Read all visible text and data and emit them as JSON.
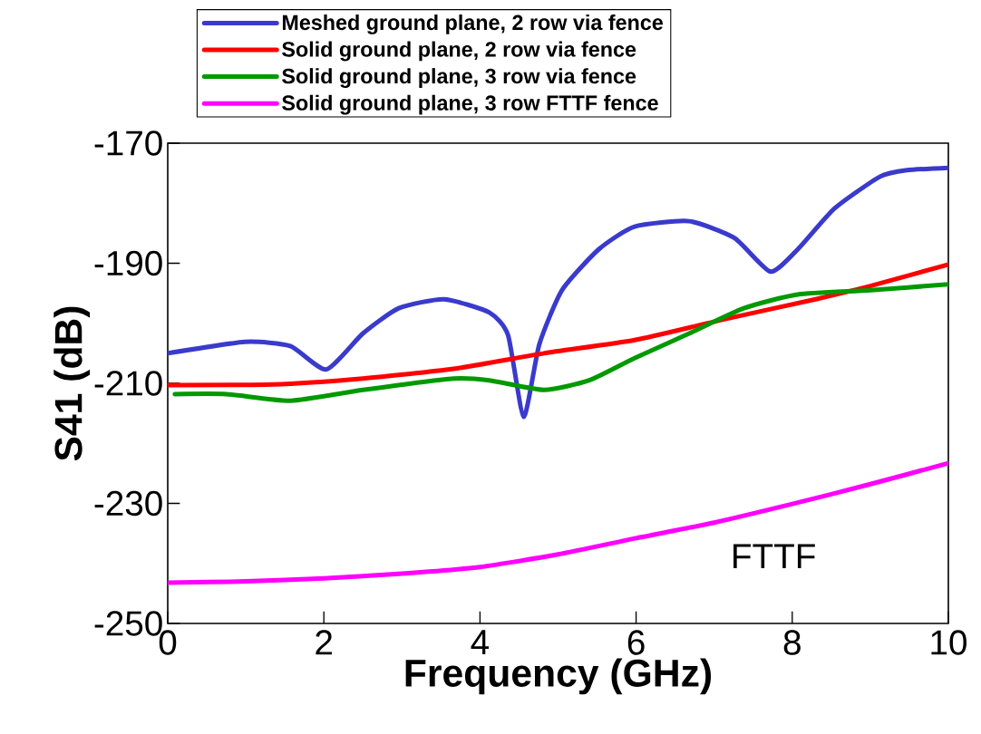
{
  "chart_data": {
    "type": "line",
    "xlabel": "Frequency (GHz)",
    "ylabel": "S41 (dB)",
    "xlim": [
      0,
      10
    ],
    "ylim": [
      -250,
      -170
    ],
    "xticks": [
      0,
      2,
      4,
      6,
      8,
      10
    ],
    "yticks": [
      -250,
      -230,
      -210,
      -190,
      -170
    ],
    "grid": false,
    "legend": "top",
    "marker": "none",
    "line_style": "solid",
    "annotations": [
      "FTTF"
    ],
    "series": [
      {
        "name": "Meshed ground plane, 2 row via fence",
        "color": "#3a3acc",
        "x": [
          0,
          0.99,
          1.57,
          2.03,
          2.5,
          2.96,
          3.54,
          4.12,
          4.36,
          4.56,
          4.76,
          5.05,
          5.52,
          5.98,
          6.68,
          7.26,
          7.72,
          8.07,
          8.54,
          9.12,
          9.47,
          10
        ],
        "values": [
          -205.0,
          -203.1,
          -203.8,
          -207.7,
          -201.7,
          -197.5,
          -196.0,
          -198.2,
          -202.0,
          -215.6,
          -203.5,
          -194.5,
          -187.7,
          -183.9,
          -183.0,
          -185.8,
          -191.4,
          -187.7,
          -180.9,
          -175.6,
          -174.5,
          -174.1
        ]
      },
      {
        "name": "Solid ground plane, 2 row via fence",
        "color": "#ff0000",
        "x": [
          0,
          1.34,
          2.5,
          3.66,
          4.82,
          5.98,
          7.14,
          8.3,
          9.0,
          10
        ],
        "values": [
          -210.3,
          -210.2,
          -209.2,
          -207.6,
          -205.0,
          -202.8,
          -199.3,
          -196.0,
          -193.8,
          -190.2
        ]
      },
      {
        "name": "Solid ground plane, 3 row via fence",
        "color": "#009900",
        "x": [
          0.09,
          0.75,
          1.57,
          2.5,
          3.66,
          4.12,
          4.82,
          5.4,
          5.98,
          6.68,
          7.38,
          8.07,
          9.0,
          10
        ],
        "values": [
          -211.8,
          -211.8,
          -212.9,
          -211.1,
          -209.2,
          -209.5,
          -211.1,
          -209.5,
          -205.8,
          -201.7,
          -197.5,
          -195.2,
          -194.5,
          -193.5
        ]
      },
      {
        "name": "Solid ground plane, 3 row FTTF fence",
        "color": "#ff00ff",
        "x": [
          0,
          1,
          2,
          3,
          4,
          5,
          6,
          7,
          8,
          9,
          10
        ],
        "values": [
          -243.2,
          -243.0,
          -242.5,
          -241.7,
          -240.6,
          -238.5,
          -235.8,
          -233.2,
          -230.1,
          -226.8,
          -223.3
        ]
      }
    ]
  }
}
